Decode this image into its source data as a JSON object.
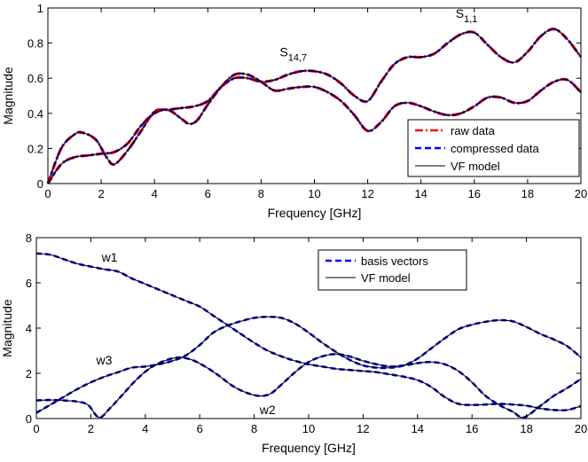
{
  "chart_data": [
    {
      "type": "line",
      "xlabel": "Frequency [GHz]",
      "ylabel": "Magnitude",
      "xlim": [
        0,
        20
      ],
      "ylim": [
        0,
        1
      ],
      "xticks": [
        "0",
        "2",
        "4",
        "6",
        "8",
        "10",
        "12",
        "14",
        "16",
        "18",
        "20"
      ],
      "yticks": [
        "0",
        "0.2",
        "0.4",
        "0.6",
        "0.8",
        "1"
      ],
      "grid": false,
      "legend_position": "bottom-right",
      "legend": [
        {
          "label": "raw data",
          "style": "dash-dot",
          "color": "#ff0000"
        },
        {
          "label": "compressed data",
          "style": "dashed",
          "color": "#0000ff"
        },
        {
          "label": "VF model",
          "style": "solid",
          "color": "#000000"
        }
      ],
      "annotations": [
        {
          "main": "S",
          "sub": "1,1",
          "x": 15.3,
          "y": 0.945
        },
        {
          "main": "S",
          "sub": "14,7",
          "x": 8.7,
          "y": 0.725
        }
      ],
      "series": [
        {
          "id": "s11",
          "x": [
            0,
            0.5,
            1,
            1.3,
            1.8,
            2.2,
            2.5,
            3,
            3.5,
            4,
            4.5,
            5,
            5.5,
            6,
            6.5,
            7,
            7.5,
            8,
            8.5,
            9,
            9.5,
            10,
            10.5,
            11,
            11.5,
            12,
            12.5,
            13,
            13.5,
            14,
            14.5,
            15,
            15.5,
            16,
            16.5,
            17,
            17.5,
            18,
            18.5,
            19,
            19.5,
            20
          ],
          "y": [
            0.0,
            0.2,
            0.28,
            0.29,
            0.25,
            0.15,
            0.11,
            0.19,
            0.3,
            0.41,
            0.42,
            0.43,
            0.44,
            0.47,
            0.55,
            0.6,
            0.6,
            0.58,
            0.59,
            0.62,
            0.64,
            0.64,
            0.62,
            0.57,
            0.5,
            0.47,
            0.58,
            0.68,
            0.72,
            0.72,
            0.74,
            0.8,
            0.85,
            0.86,
            0.79,
            0.72,
            0.69,
            0.75,
            0.84,
            0.88,
            0.82,
            0.72
          ]
        },
        {
          "id": "s147",
          "x": [
            0,
            0.5,
            1,
            1.5,
            2,
            2.5,
            3,
            3.5,
            4,
            4.5,
            5,
            5.3,
            5.6,
            6,
            6.5,
            7,
            7.5,
            8,
            8.5,
            9,
            9.5,
            10,
            10.5,
            11,
            11.5,
            12,
            12.5,
            13,
            13.5,
            14,
            14.5,
            15,
            15.5,
            16,
            16.5,
            17,
            17.5,
            18,
            18.5,
            19,
            19.5,
            20
          ],
          "y": [
            0.0,
            0.11,
            0.15,
            0.16,
            0.17,
            0.18,
            0.23,
            0.33,
            0.4,
            0.42,
            0.37,
            0.34,
            0.36,
            0.45,
            0.55,
            0.62,
            0.62,
            0.58,
            0.53,
            0.54,
            0.55,
            0.55,
            0.52,
            0.47,
            0.39,
            0.3,
            0.35,
            0.44,
            0.46,
            0.44,
            0.41,
            0.39,
            0.4,
            0.44,
            0.49,
            0.49,
            0.46,
            0.47,
            0.53,
            0.58,
            0.59,
            0.52
          ]
        }
      ]
    },
    {
      "type": "line",
      "xlabel": "Frequency [GHz]",
      "ylabel": "Magnitude",
      "xlim": [
        0,
        20
      ],
      "ylim": [
        0,
        8
      ],
      "xticks": [
        "0",
        "2",
        "4",
        "6",
        "8",
        "10",
        "12",
        "14",
        "16",
        "18",
        "20"
      ],
      "yticks": [
        "0",
        "2",
        "4",
        "6",
        "8"
      ],
      "grid": false,
      "legend_position": "top-center",
      "legend": [
        {
          "label": "basis vectors",
          "style": "dashed",
          "color": "#0000ff"
        },
        {
          "label": "VF model",
          "style": "solid",
          "color": "#000000"
        }
      ],
      "annotations": [
        {
          "main": "w1",
          "x": 2.4,
          "y": 6.95
        },
        {
          "main": "w3",
          "x": 2.2,
          "y": 2.4
        },
        {
          "main": "w2",
          "x": 8.2,
          "y": 0.2
        }
      ],
      "series": [
        {
          "id": "w1",
          "x": [
            0,
            0.5,
            1,
            1.5,
            2,
            2.5,
            3,
            3.5,
            4,
            4.5,
            5,
            5.5,
            6,
            6.5,
            7,
            7.5,
            8,
            8.5,
            9,
            9.5,
            10,
            10.5,
            11,
            11.5,
            12,
            12.5,
            13,
            13.5,
            14,
            14.5,
            15,
            15.5,
            16,
            16.5,
            17,
            17.5,
            18,
            18.5,
            19,
            19.5,
            20
          ],
          "y": [
            7.3,
            7.25,
            7.05,
            6.85,
            6.72,
            6.6,
            6.5,
            6.2,
            5.95,
            5.7,
            5.45,
            5.2,
            4.95,
            4.55,
            4.15,
            3.75,
            3.35,
            3.0,
            2.75,
            2.55,
            2.4,
            2.3,
            2.2,
            2.15,
            2.1,
            2.05,
            1.95,
            1.85,
            1.7,
            1.4,
            0.95,
            0.65,
            0.6,
            0.62,
            0.65,
            0.62,
            0.57,
            0.45,
            0.38,
            0.38,
            0.55
          ]
        },
        {
          "id": "w3",
          "x": [
            0,
            0.5,
            1,
            1.5,
            2,
            2.5,
            3,
            3.5,
            4,
            4.5,
            5,
            5.5,
            6,
            6.5,
            7,
            7.5,
            8,
            8.5,
            9,
            9.5,
            10,
            10.5,
            11,
            11.5,
            12,
            12.5,
            13,
            13.5,
            14,
            14.5,
            15,
            15.5,
            16,
            16.5,
            17,
            17.5,
            18,
            18.5,
            19,
            19.5,
            20
          ],
          "y": [
            0.25,
            0.6,
            0.95,
            1.3,
            1.6,
            1.85,
            2.05,
            2.25,
            2.3,
            2.4,
            2.55,
            2.8,
            3.25,
            3.8,
            4.1,
            4.3,
            4.45,
            4.5,
            4.45,
            4.2,
            3.8,
            3.35,
            2.95,
            2.6,
            2.35,
            2.25,
            2.25,
            2.35,
            2.65,
            3.1,
            3.55,
            3.95,
            4.15,
            4.28,
            4.35,
            4.3,
            4.05,
            3.75,
            3.5,
            3.2,
            2.7
          ]
        },
        {
          "id": "w2",
          "x": [
            0,
            0.5,
            1,
            1.5,
            1.9,
            2.3,
            2.7,
            3.2,
            3.7,
            4.2,
            4.7,
            5.2,
            5.7,
            6.2,
            6.7,
            7.2,
            7.7,
            8.2,
            8.6,
            9,
            9.5,
            10,
            10.5,
            11,
            11.5,
            12,
            12.5,
            13,
            13.5,
            14,
            14.5,
            15,
            15.5,
            16,
            16.5,
            17,
            17.5,
            17.9,
            18.5,
            19,
            19.5,
            20
          ],
          "y": [
            0.8,
            0.82,
            0.8,
            0.75,
            0.6,
            0.05,
            0.45,
            1.1,
            1.75,
            2.25,
            2.55,
            2.7,
            2.6,
            2.3,
            1.9,
            1.45,
            1.15,
            1.0,
            1.1,
            1.5,
            2.05,
            2.5,
            2.75,
            2.85,
            2.75,
            2.55,
            2.4,
            2.3,
            2.35,
            2.45,
            2.5,
            2.4,
            2.1,
            1.6,
            1.0,
            0.6,
            0.3,
            0.05,
            0.55,
            1.0,
            1.35,
            1.75
          ]
        }
      ]
    }
  ]
}
